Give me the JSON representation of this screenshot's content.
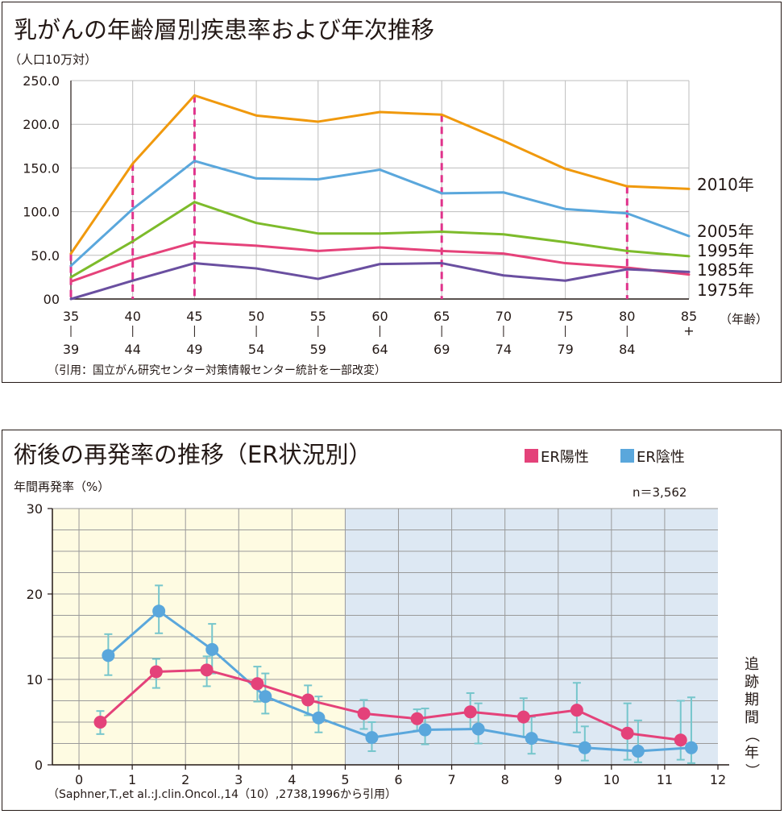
{
  "chart_data": [
    {
      "type": "line",
      "title": "乳がんの年齢層別疾患率および年次推移",
      "ylabel": "（人口10万対）",
      "xlabel": "（年齢）",
      "ylim": [
        0,
        250
      ],
      "y_tick_labels": [
        "00",
        "50.0",
        "100.0",
        "150.0",
        "200.0",
        "250.0"
      ],
      "categories": [
        {
          "top": "35",
          "bottom": "39"
        },
        {
          "top": "40",
          "bottom": "44"
        },
        {
          "top": "45",
          "bottom": "49"
        },
        {
          "top": "50",
          "bottom": "54"
        },
        {
          "top": "55",
          "bottom": "59"
        },
        {
          "top": "60",
          "bottom": "64"
        },
        {
          "top": "65",
          "bottom": "69"
        },
        {
          "top": "70",
          "bottom": "74"
        },
        {
          "top": "75",
          "bottom": "79"
        },
        {
          "top": "80",
          "bottom": "84"
        },
        {
          "top": "85",
          "bottom": "+"
        }
      ],
      "series": [
        {
          "name": "2010年",
          "color": "#f0990d",
          "values": [
            52,
            155,
            233,
            210,
            203,
            214,
            211,
            181,
            149,
            129,
            126
          ]
        },
        {
          "name": "2005年",
          "color": "#5aa7dc",
          "values": [
            38,
            103,
            158,
            138,
            137,
            148,
            121,
            122,
            103,
            98,
            72
          ]
        },
        {
          "name": "1995年",
          "color": "#7dbb2b",
          "values": [
            25,
            66,
            111,
            87,
            75,
            75,
            77,
            74,
            65,
            55,
            49
          ]
        },
        {
          "name": "1985年",
          "color": "#e5427a",
          "values": [
            20,
            45,
            65,
            61,
            55,
            59,
            55,
            52,
            41,
            36,
            28
          ]
        },
        {
          "name": "1975年",
          "color": "#6a4fa0",
          "values": [
            0,
            21,
            41,
            35,
            23,
            40,
            41,
            27,
            21,
            34,
            31
          ]
        }
      ],
      "highlight_reference": {
        "color": "#e0338c",
        "marked_categories": [
          "35",
          "40",
          "45",
          "65",
          "80"
        ]
      },
      "grid": true,
      "legend_placement": "right, next to line ends",
      "source": "（引用：国立がん研究センター対策情報センター統計を一部改変）"
    },
    {
      "type": "line",
      "title": "術後の再発率の推移（ER状況別）",
      "ylabel": "年間再発率（%）",
      "xlabel": "追跡期間（年）",
      "annotation": "n＝3,562",
      "ylim": [
        0,
        30
      ],
      "xlim": [
        -0.5,
        12
      ],
      "x_ticks": [
        0,
        1,
        2,
        3,
        4,
        5,
        6,
        7,
        8,
        9,
        10,
        11,
        12
      ],
      "y_ticks": [
        0,
        10,
        20,
        30
      ],
      "shaded_regions": [
        {
          "from": -0.5,
          "to": 5,
          "color": "#fefbe2"
        },
        {
          "from": 5,
          "to": 12,
          "color": "#dde8f3"
        }
      ],
      "error_bar_color": "#76c6cc",
      "series": [
        {
          "name": "ER陽性",
          "color": "#e4427a",
          "points": [
            {
              "x": 0.4,
              "y": 5.0,
              "low": 3.6,
              "high": 6.3
            },
            {
              "x": 1.45,
              "y": 10.9,
              "low": 9.0,
              "high": 12.4
            },
            {
              "x": 2.4,
              "y": 11.1,
              "low": 9.2,
              "high": 12.7
            },
            {
              "x": 3.35,
              "y": 9.5,
              "low": 7.4,
              "high": 11.5
            },
            {
              "x": 4.3,
              "y": 7.6,
              "low": 5.8,
              "high": 9.3
            },
            {
              "x": 5.35,
              "y": 6.0,
              "low": 4.2,
              "high": 7.6
            },
            {
              "x": 6.35,
              "y": 5.4,
              "low": 4.0,
              "high": 6.5
            },
            {
              "x": 7.35,
              "y": 6.2,
              "low": 4.2,
              "high": 8.4
            },
            {
              "x": 8.35,
              "y": 5.6,
              "low": 3.3,
              "high": 7.8
            },
            {
              "x": 9.35,
              "y": 6.4,
              "low": 3.8,
              "high": 9.6
            },
            {
              "x": 10.3,
              "y": 3.7,
              "low": 0.6,
              "high": 7.2
            },
            {
              "x": 11.3,
              "y": 2.9,
              "low": 0.6,
              "high": 7.5
            }
          ]
        },
        {
          "name": "ER陰性",
          "color": "#5aa7dc",
          "points": [
            {
              "x": 0.55,
              "y": 12.8,
              "low": 10.5,
              "high": 15.3
            },
            {
              "x": 1.5,
              "y": 18.0,
              "low": 15.4,
              "high": 21.0
            },
            {
              "x": 2.5,
              "y": 13.5,
              "low": 10.7,
              "high": 16.5
            },
            {
              "x": 3.5,
              "y": 8.0,
              "low": 6.0,
              "high": 10.7
            },
            {
              "x": 4.5,
              "y": 5.5,
              "low": 3.8,
              "high": 8.0
            },
            {
              "x": 5.5,
              "y": 3.2,
              "low": 1.6,
              "high": 5.0
            },
            {
              "x": 6.5,
              "y": 4.1,
              "low": 2.4,
              "high": 6.6
            },
            {
              "x": 7.5,
              "y": 4.2,
              "low": 2.5,
              "high": 7.2
            },
            {
              "x": 8.5,
              "y": 3.1,
              "low": 1.3,
              "high": 5.6
            },
            {
              "x": 9.5,
              "y": 2.0,
              "low": 0.5,
              "high": 4.5
            },
            {
              "x": 10.5,
              "y": 1.6,
              "low": 0.3,
              "high": 5.2
            },
            {
              "x": 11.5,
              "y": 2.0,
              "low": 0.2,
              "high": 7.9
            }
          ]
        }
      ],
      "legend": [
        {
          "label": "ER陽性",
          "color": "#e4427a"
        },
        {
          "label": "ER陰性",
          "color": "#5aa7dc"
        }
      ],
      "legend_placement": "top-right",
      "grid": true,
      "source": "（Saphner,T.,et al.:J.clin.Oncol.,14（10）,2738,1996から引用）"
    }
  ]
}
